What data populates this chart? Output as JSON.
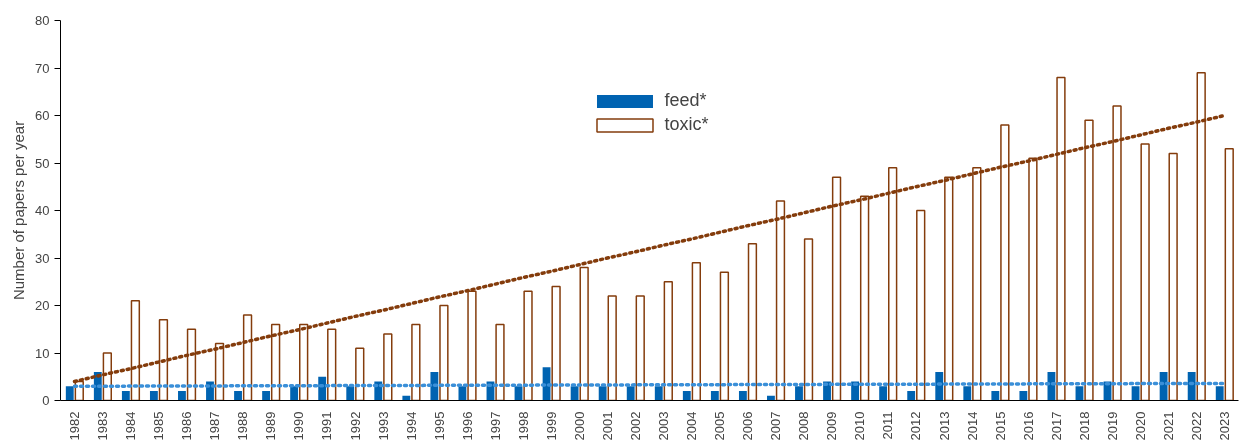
{
  "chart_data": {
    "type": "bar",
    "ylabel": "Number of papers per year",
    "categories": [
      "1982",
      "1983",
      "1984",
      "1985",
      "1986",
      "1987",
      "1988",
      "1989",
      "1990",
      "1991",
      "1992",
      "1993",
      "1994",
      "1995",
      "1996",
      "1997",
      "1998",
      "1999",
      "2000",
      "2001",
      "2002",
      "2003",
      "2004",
      "2005",
      "2006",
      "2007",
      "2008",
      "2009",
      "2010",
      "2011",
      "2012",
      "2013",
      "2014",
      "2015",
      "2016",
      "2017",
      "2018",
      "2019",
      "2020",
      "2021",
      "2022",
      "2023"
    ],
    "series": [
      {
        "name": "feed*",
        "color": "#0063b1",
        "values": [
          3,
          6,
          2,
          2,
          2,
          4,
          2,
          2,
          3,
          5,
          3,
          4,
          1,
          6,
          3,
          4,
          3,
          7,
          3,
          3,
          3,
          3,
          2,
          2,
          2,
          1,
          3,
          4,
          4,
          3,
          2,
          6,
          3,
          2,
          2,
          6,
          3,
          4,
          3,
          6,
          6,
          3
        ]
      },
      {
        "name": "toxic*",
        "color": "#843c0c",
        "values": [
          4,
          10,
          21,
          17,
          15,
          12,
          18,
          16,
          16,
          15,
          11,
          14,
          16,
          20,
          23,
          16,
          23,
          24,
          28,
          22,
          22,
          25,
          29,
          27,
          33,
          42,
          34,
          47,
          43,
          49,
          40,
          47,
          49,
          58,
          51,
          68,
          59,
          62,
          54,
          52,
          69,
          53
        ]
      },
      {
        "type": "line",
        "line_style": "dotted",
        "color": "#3a8fd8",
        "values": [
          3.0,
          3.01,
          3.03,
          3.04,
          3.06,
          3.07,
          3.09,
          3.1,
          3.12,
          3.13,
          3.15,
          3.16,
          3.18,
          3.19,
          3.2,
          3.22,
          3.23,
          3.25,
          3.26,
          3.28,
          3.29,
          3.31,
          3.32,
          3.34,
          3.35,
          3.37,
          3.38,
          3.4,
          3.41,
          3.42,
          3.44,
          3.45,
          3.47,
          3.48,
          3.5,
          3.51,
          3.53,
          3.54,
          3.56,
          3.57,
          3.59,
          3.6
        ]
      },
      {
        "type": "line",
        "line_style": "dotted",
        "color": "#843c0c",
        "values": [
          4.0,
          5.4,
          6.7,
          8.1,
          9.5,
          10.8,
          12.2,
          13.6,
          14.9,
          16.3,
          17.7,
          19.0,
          20.4,
          21.8,
          23.1,
          24.5,
          25.9,
          27.2,
          28.6,
          30.0,
          31.3,
          32.7,
          34.0,
          35.4,
          36.8,
          38.1,
          39.5,
          40.9,
          42.2,
          43.6,
          45.0,
          46.3,
          47.7,
          49.1,
          50.4,
          51.8,
          53.2,
          54.5,
          55.9,
          57.3,
          58.6,
          60.0
        ]
      }
    ],
    "ylim": [
      0,
      80
    ],
    "yticks": [
      0,
      10,
      20,
      30,
      40,
      50,
      60,
      70,
      80
    ],
    "grid": false,
    "legend": "top"
  }
}
